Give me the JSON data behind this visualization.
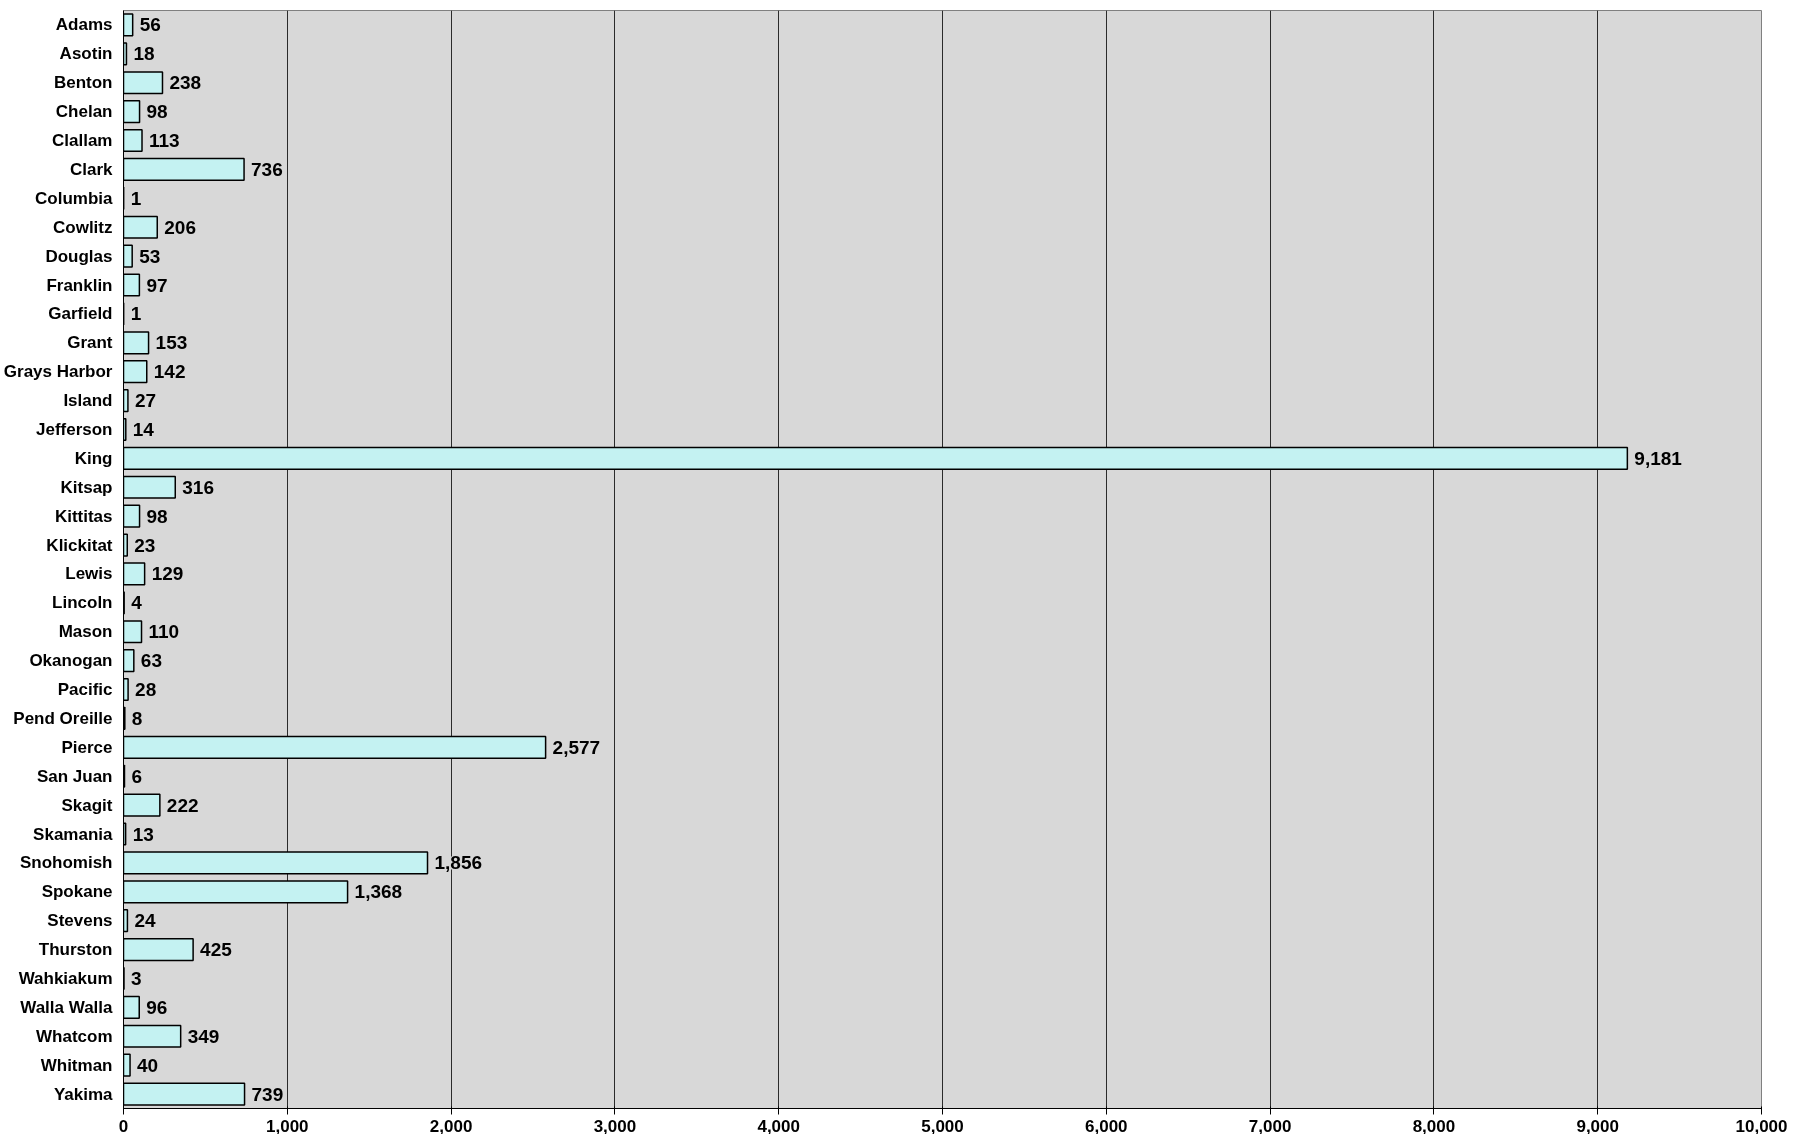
{
  "chart_data": {
    "type": "bar",
    "orientation": "horizontal",
    "categories": [
      "Adams",
      "Asotin",
      "Benton",
      "Chelan",
      "Clallam",
      "Clark",
      "Columbia",
      "Cowlitz",
      "Douglas",
      "Franklin",
      "Garfield",
      "Grant",
      "Grays Harbor",
      "Island",
      "Jefferson",
      "King",
      "Kitsap",
      "Kittitas",
      "Klickitat",
      "Lewis",
      "Lincoln",
      "Mason",
      "Okanogan",
      "Pacific",
      "Pend Oreille",
      "Pierce",
      "San Juan",
      "Skagit",
      "Skamania",
      "Snohomish",
      "Spokane",
      "Stevens",
      "Thurston",
      "Wahkiakum",
      "Walla Walla",
      "Whatcom",
      "Whitman",
      "Yakima"
    ],
    "values": [
      56,
      18,
      238,
      98,
      113,
      736,
      1,
      206,
      53,
      97,
      1,
      153,
      142,
      27,
      14,
      9181,
      316,
      98,
      23,
      129,
      4,
      110,
      63,
      28,
      8,
      2577,
      6,
      222,
      13,
      1856,
      1368,
      24,
      425,
      3,
      96,
      349,
      40,
      739
    ],
    "color": "#c4f2f2",
    "xlim": [
      0,
      10000
    ],
    "xticks": [
      0,
      {
        "value": 1000,
        "label": "1,000"
      },
      {
        "value": 2000,
        "label": "2,000"
      },
      {
        "value": 3000,
        "label": "3,000"
      },
      {
        "value": 4000,
        "label": "4,000"
      },
      {
        "value": 5000,
        "label": "5,000"
      },
      {
        "value": 6000,
        "label": "6,000"
      },
      {
        "value": 7000,
        "label": "7,000"
      },
      {
        "value": 8000,
        "label": "8,000"
      },
      {
        "value": 9000,
        "label": "9,000"
      },
      {
        "value": 10000,
        "label": "10,000"
      }
    ],
    "value_labels": [
      "56",
      "18",
      "238",
      "98",
      "113",
      "736",
      "1",
      "206",
      "53",
      "97",
      "1",
      "153",
      "142",
      "27",
      "14",
      "9,181",
      "316",
      "98",
      "23",
      "129",
      "4",
      "110",
      "63",
      "28",
      "8",
      "2,577",
      "6",
      "222",
      "13",
      "1,856",
      "1,368",
      "24",
      "425",
      "3",
      "96",
      "349",
      "40",
      "739"
    ],
    "grid": "x"
  }
}
